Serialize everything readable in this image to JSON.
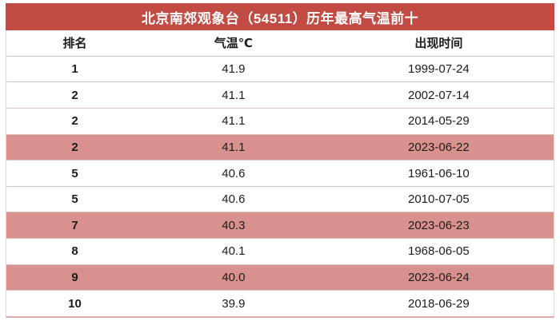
{
  "title": "北京南郊观象台（54511）历年最高气温前十",
  "colors": {
    "title_bar_background": "#c24b44",
    "title_text": "#ffffff",
    "highlight_row_background": "#d9918e",
    "row_divider": "#d9c4c2",
    "bottom_border": "#e0aeaa",
    "body_text": "#1c1c1c"
  },
  "table": {
    "columns": [
      "排名",
      "气温℃",
      "出现时间"
    ],
    "rows": [
      {
        "rank": "1",
        "temp": "41.9",
        "date": "1999-07-24",
        "highlight": false
      },
      {
        "rank": "2",
        "temp": "41.1",
        "date": "2002-07-14",
        "highlight": false
      },
      {
        "rank": "2",
        "temp": "41.1",
        "date": "2014-05-29",
        "highlight": false
      },
      {
        "rank": "2",
        "temp": "41.1",
        "date": "2023-06-22",
        "highlight": true
      },
      {
        "rank": "5",
        "temp": "40.6",
        "date": "1961-06-10",
        "highlight": false
      },
      {
        "rank": "5",
        "temp": "40.6",
        "date": "2010-07-05",
        "highlight": false
      },
      {
        "rank": "7",
        "temp": "40.3",
        "date": "2023-06-23",
        "highlight": true
      },
      {
        "rank": "8",
        "temp": "40.1",
        "date": "1968-06-05",
        "highlight": false
      },
      {
        "rank": "9",
        "temp": "40.0",
        "date": "2023-06-24",
        "highlight": true
      },
      {
        "rank": "10",
        "temp": "39.9",
        "date": "2018-06-29",
        "highlight": false
      }
    ]
  },
  "chart_data": {
    "type": "table",
    "title": "北京南郊观象台（54511）历年最高气温前十",
    "columns": [
      "排名",
      "气温℃",
      "出现时间"
    ],
    "rows": [
      [
        "1",
        41.9,
        "1999-07-24"
      ],
      [
        "2",
        41.1,
        "2002-07-14"
      ],
      [
        "2",
        41.1,
        "2014-05-29"
      ],
      [
        "2",
        41.1,
        "2023-06-22"
      ],
      [
        "5",
        40.6,
        "1961-06-10"
      ],
      [
        "5",
        40.6,
        "2010-07-05"
      ],
      [
        "7",
        40.3,
        "2023-06-23"
      ],
      [
        "8",
        40.1,
        "1968-06-05"
      ],
      [
        "9",
        40.0,
        "2023-06-24"
      ],
      [
        "10",
        39.9,
        "2018-06-29"
      ]
    ],
    "highlighted_rows": [
      [
        "2",
        41.1,
        "2023-06-22"
      ],
      [
        "7",
        40.3,
        "2023-06-23"
      ],
      [
        "9",
        40.0,
        "2023-06-24"
      ]
    ],
    "layout_hints": {
      "highlight_meaning": "rows with dates in 2023",
      "column_alignment": "center",
      "grid": "horizontal row dividers only"
    }
  }
}
